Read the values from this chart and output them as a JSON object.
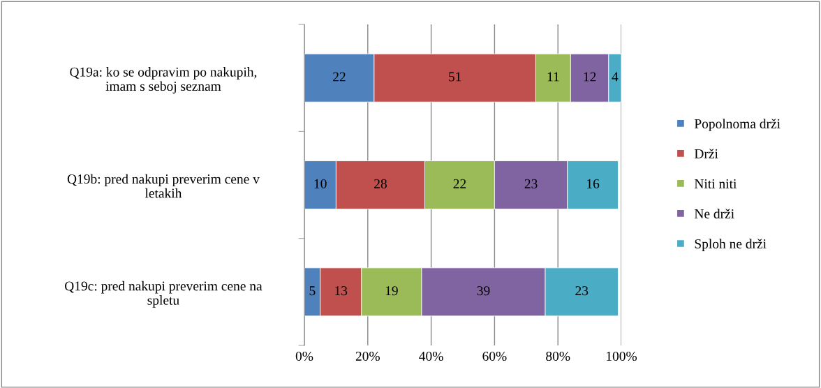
{
  "chart_data": {
    "type": "bar",
    "orientation": "horizontal",
    "stacked": true,
    "categories": [
      "Q19a: ko se odpravim po nakupih,\nimam s seboj seznam",
      "Q19b: pred nakupi preverim cene v\nletakih",
      "Q19c: pred nakupi preverim cene na\nspletu"
    ],
    "series": [
      {
        "name": "Popolnoma drži",
        "color": "#4f81bd",
        "values": [
          22,
          10,
          5
        ]
      },
      {
        "name": "Drži",
        "color": "#c0504d",
        "values": [
          51,
          28,
          13
        ]
      },
      {
        "name": "Niti niti",
        "color": "#9bbb59",
        "values": [
          11,
          22,
          19
        ]
      },
      {
        "name": "Ne drži",
        "color": "#8064a2",
        "values": [
          12,
          23,
          39
        ]
      },
      {
        "name": "Sploh ne drži",
        "color": "#4bacc6",
        "values": [
          4,
          16,
          23
        ]
      }
    ],
    "xlim": [
      0,
      100
    ],
    "xticks": [
      {
        "value": 0,
        "label": "0%"
      },
      {
        "value": 20,
        "label": "20%"
      },
      {
        "value": 40,
        "label": "40%"
      },
      {
        "value": 60,
        "label": "60%"
      },
      {
        "value": 80,
        "label": "80%"
      },
      {
        "value": 100,
        "label": "100%"
      }
    ],
    "grid": "x",
    "legend": "right",
    "data_labels": true
  }
}
